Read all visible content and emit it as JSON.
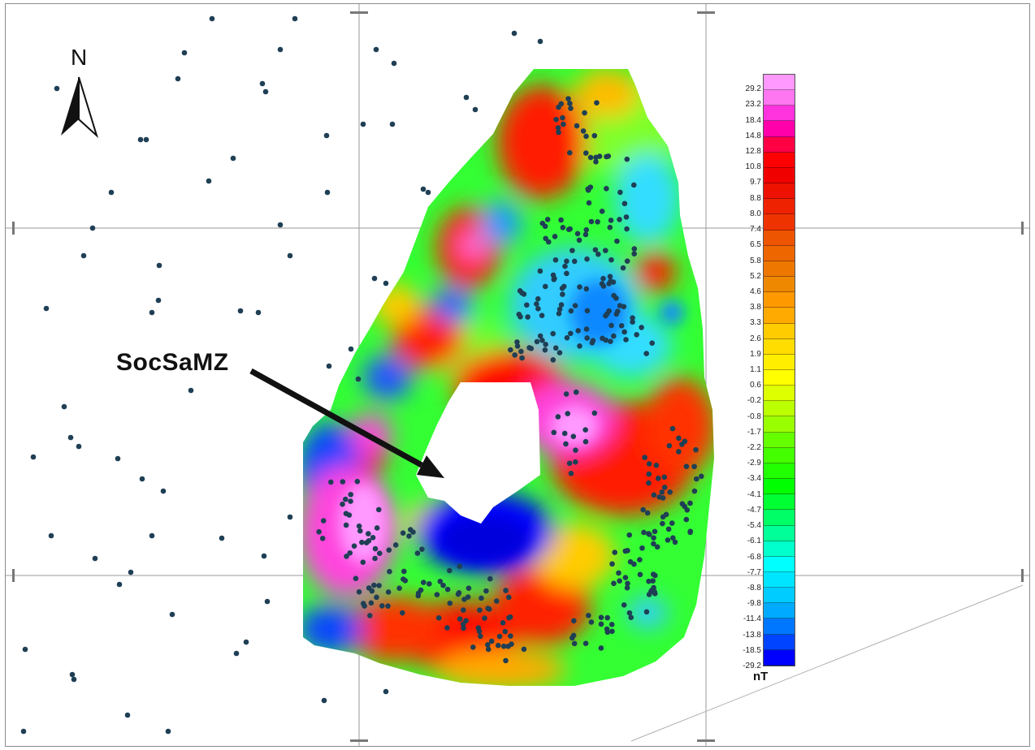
{
  "map": {
    "north_label": "N",
    "annotation_label": "SocSaMZ",
    "unit_label": "nT",
    "colors": {
      "frame": "#8a8a8a",
      "grid": "#9a9a9a",
      "station_dot": "#1f3f55",
      "arrow": "#111111"
    },
    "legend": {
      "labels": [
        "29.2",
        "23.2",
        "18.4",
        "14.8",
        "12.8",
        "10.8",
        "9.7",
        "8.8",
        "8.0",
        "7.4",
        "6.5",
        "5.8",
        "5.2",
        "4.6",
        "3.8",
        "3.3",
        "2.6",
        "1.9",
        "1.1",
        "0.6",
        "-0.2",
        "-0.8",
        "-1.7",
        "-2.2",
        "-2.9",
        "-3.4",
        "-4.1",
        "-4.7",
        "-5.4",
        "-6.1",
        "-6.8",
        "-7.7",
        "-8.8",
        "-9.8",
        "-11.4",
        "-13.8",
        "-18.5",
        "-29.2"
      ],
      "colors": [
        "#ff99ff",
        "#ff77f0",
        "#ff33dd",
        "#ff00aa",
        "#ff0044",
        "#ff0000",
        "#f10000",
        "#ee1100",
        "#ee2200",
        "#ee3300",
        "#ee5500",
        "#ee6600",
        "#ee7700",
        "#ee8800",
        "#ff9900",
        "#ffaa00",
        "#ffcc00",
        "#ffdd00",
        "#ffee00",
        "#ffff00",
        "#ddff00",
        "#bbff00",
        "#99ff00",
        "#66ff00",
        "#44ff00",
        "#22ff00",
        "#00ff00",
        "#00ff33",
        "#00ff66",
        "#00ff99",
        "#00ffcc",
        "#00ffff",
        "#00e5ff",
        "#00ccff",
        "#00aaff",
        "#0077ff",
        "#0044ff",
        "#0000ff"
      ]
    }
  }
}
